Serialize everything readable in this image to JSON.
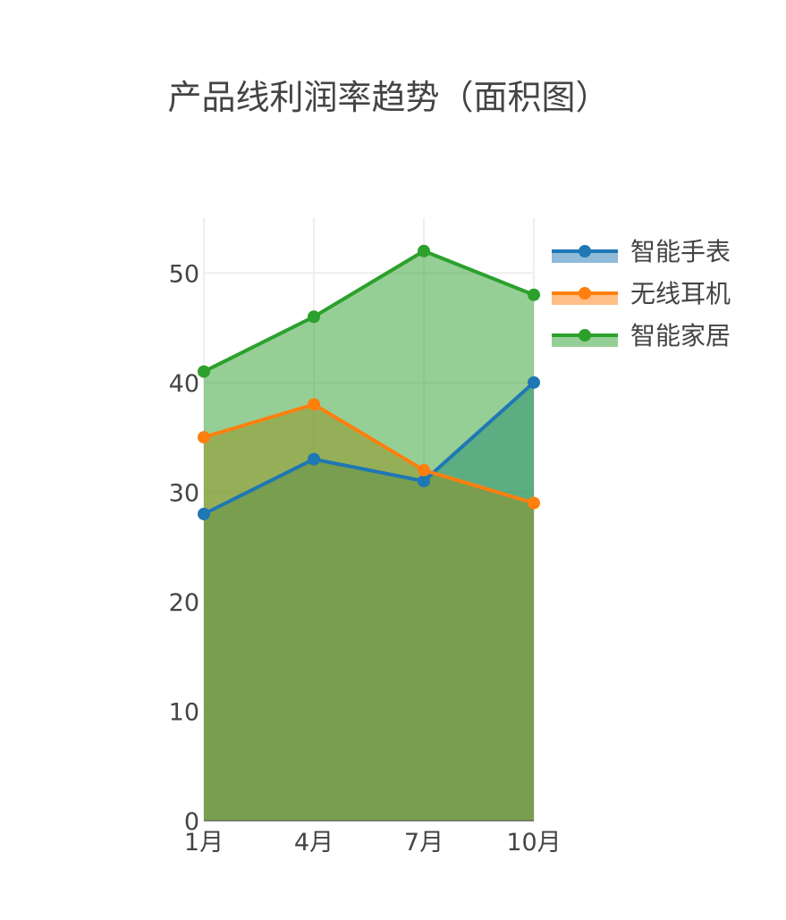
{
  "chart_data": {
    "type": "area",
    "title": "产品线利润率趋势（面积图）",
    "xlabel": "",
    "ylabel": "",
    "categories": [
      "1月",
      "4月",
      "7月",
      "10月"
    ],
    "ylim": [
      0,
      55
    ],
    "yticks": [
      0,
      10,
      20,
      30,
      40,
      50
    ],
    "grid": true,
    "legend_position": "top-right",
    "series": [
      {
        "name": "智能手表",
        "values": [
          28,
          33,
          31,
          40
        ],
        "color": "#1f77b4"
      },
      {
        "name": "无线耳机",
        "values": [
          35,
          38,
          32,
          29
        ],
        "color": "#ff7f0e"
      },
      {
        "name": "智能家居",
        "values": [
          41,
          46,
          52,
          48
        ],
        "color": "#2ca02c"
      }
    ]
  }
}
